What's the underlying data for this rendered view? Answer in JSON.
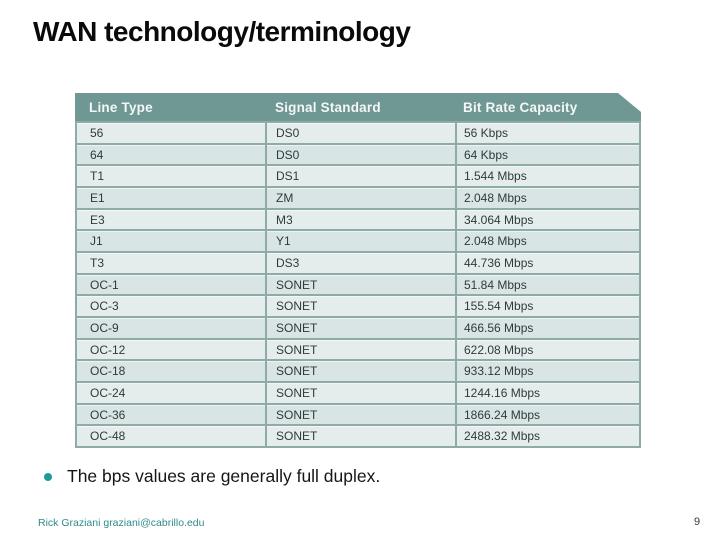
{
  "slide": {
    "title": "WAN technology/terminology",
    "bullet_text": "The bps values are generally full duplex.",
    "footer": "Rick Graziani  graziani@cabrillo.edu",
    "page_number": "9"
  },
  "table": {
    "headers": [
      "Line Type",
      "Signal Standard",
      "Bit Rate Capacity"
    ],
    "rows": [
      {
        "line_type": "56",
        "signal_standard": "DS0",
        "bit_rate": "56 Kbps"
      },
      {
        "line_type": "64",
        "signal_standard": "DS0",
        "bit_rate": "64 Kbps"
      },
      {
        "line_type": "T1",
        "signal_standard": "DS1",
        "bit_rate": "1.544 Mbps"
      },
      {
        "line_type": "E1",
        "signal_standard": "ZM",
        "bit_rate": "2.048 Mbps"
      },
      {
        "line_type": "E3",
        "signal_standard": "M3",
        "bit_rate": "34.064 Mbps"
      },
      {
        "line_type": "J1",
        "signal_standard": "Y1",
        "bit_rate": "2.048 Mbps"
      },
      {
        "line_type": "T3",
        "signal_standard": "DS3",
        "bit_rate": "44.736 Mbps"
      },
      {
        "line_type": "OC-1",
        "signal_standard": "SONET",
        "bit_rate": "51.84 Mbps"
      },
      {
        "line_type": "OC-3",
        "signal_standard": "SONET",
        "bit_rate": "155.54 Mbps"
      },
      {
        "line_type": "OC-9",
        "signal_standard": "SONET",
        "bit_rate": "466.56 Mbps"
      },
      {
        "line_type": "OC-12",
        "signal_standard": "SONET",
        "bit_rate": "622.08 Mbps"
      },
      {
        "line_type": "OC-18",
        "signal_standard": "SONET",
        "bit_rate": "933.12 Mbps"
      },
      {
        "line_type": "OC-24",
        "signal_standard": "SONET",
        "bit_rate": "1244.16 Mbps"
      },
      {
        "line_type": "OC-36",
        "signal_standard": "SONET",
        "bit_rate": "1866.24 Mbps"
      },
      {
        "line_type": "OC-48",
        "signal_standard": "SONET",
        "bit_rate": "2488.32 Mbps"
      }
    ]
  },
  "colors": {
    "table_header_bg": "#6f9794",
    "row_light": "#e5edec",
    "row_dark": "#d9e5e4",
    "table_border": "#8faba7",
    "bullet_dot": "#1d9a9a",
    "footer_text": "#2e8b8b"
  }
}
